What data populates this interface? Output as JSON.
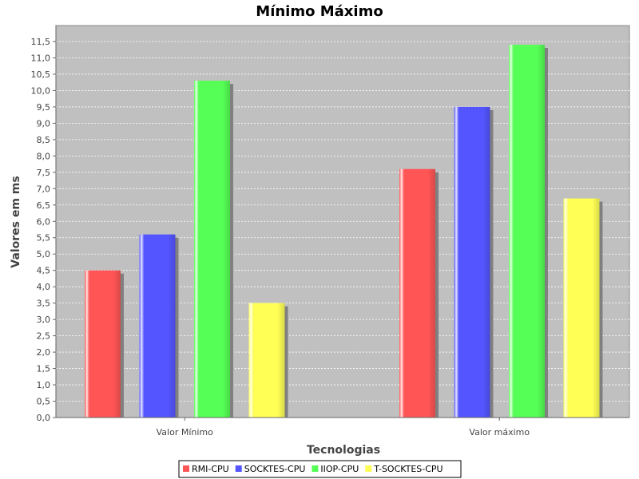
{
  "chart_data": {
    "type": "bar",
    "title": "Mínimo Máximo",
    "xlabel": "Tecnologias",
    "ylabel": "Valores em ms",
    "categories": [
      "Valor Mínimo",
      "Valor máximo"
    ],
    "series": [
      {
        "name": "RMI-CPU",
        "color": "#ff5555",
        "values": [
          4.5,
          7.6
        ]
      },
      {
        "name": "SOCKTES-CPU",
        "color": "#5555ff",
        "values": [
          5.6,
          9.5
        ]
      },
      {
        "name": "IIOP-CPU",
        "color": "#55ff55",
        "values": [
          10.3,
          11.4
        ]
      },
      {
        "name": "T-SOCKTES-CPU",
        "color": "#ffff55",
        "values": [
          3.5,
          6.7
        ]
      }
    ],
    "ylim": [
      0,
      12
    ],
    "yticks": [
      "0,0",
      "0,5",
      "1,0",
      "1,5",
      "2,0",
      "2,5",
      "3,0",
      "3,5",
      "4,0",
      "4,5",
      "5,0",
      "5,5",
      "6,0",
      "6,5",
      "7,0",
      "7,5",
      "8,0",
      "8,5",
      "9,0",
      "9,5",
      "10,0",
      "10,5",
      "11,0",
      "11,5"
    ],
    "grid": true,
    "legend_position": "bottom"
  }
}
